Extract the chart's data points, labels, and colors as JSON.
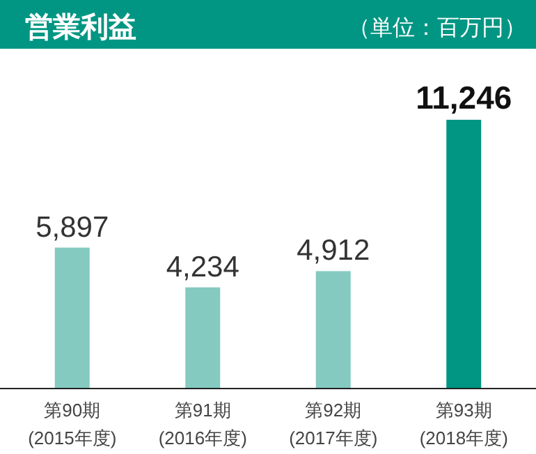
{
  "chart_data": {
    "type": "bar",
    "title": "営業利益",
    "subtitle": "（単位：百万円）",
    "categories": [
      "第90期\n(2015年度)",
      "第91期\n(2016年度)",
      "第92期\n(2017年度)",
      "第93期\n(2018年度)"
    ],
    "values": [
      5897,
      4234,
      4912,
      11246
    ],
    "colors": [
      "#84cac0",
      "#84cac0",
      "#84cac0",
      "#009683"
    ],
    "value_labels": [
      "5,897",
      "4,234",
      "4,912",
      "11,246"
    ]
  }
}
